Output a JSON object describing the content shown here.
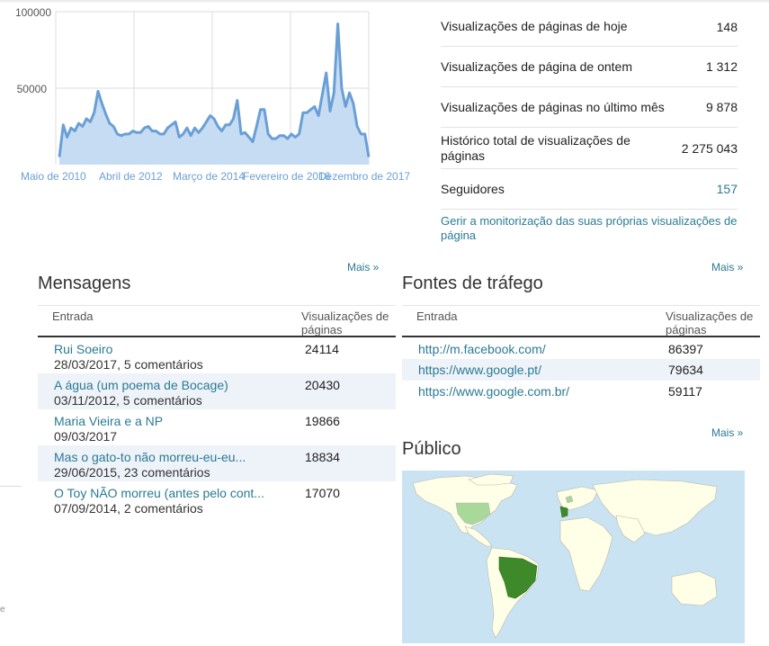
{
  "chart_data": {
    "type": "area",
    "y_ticks": [
      "100000",
      "50000"
    ],
    "x_labels": [
      "Maio de 2010",
      "Abril de 2012",
      "Março de 2014",
      "Fevereiro de 2016",
      "Dezembro de 2017"
    ],
    "ylim": [
      0,
      100000
    ],
    "color": "#6a9fd6",
    "fill": "#c6dcf3",
    "grid": true,
    "values": [
      5000,
      26000,
      18000,
      24000,
      22000,
      27000,
      25000,
      30000,
      28000,
      34000,
      48000,
      40000,
      33000,
      27000,
      25000,
      20000,
      19000,
      20000,
      20000,
      22000,
      21000,
      21000,
      24000,
      25000,
      22000,
      22000,
      20000,
      20000,
      24000,
      26000,
      28000,
      18000,
      20000,
      24000,
      19000,
      24000,
      21000,
      24000,
      28000,
      32000,
      30000,
      25000,
      22000,
      26000,
      26000,
      30000,
      42000,
      20000,
      21000,
      18000,
      15000,
      25000,
      36000,
      36000,
      20000,
      17000,
      17000,
      19000,
      19000,
      17000,
      20000,
      18000,
      20000,
      34000,
      34000,
      36000,
      38000,
      32000,
      46000,
      60000,
      35000,
      47000,
      92000,
      50000,
      38000,
      47000,
      40000,
      25000,
      20000,
      20000,
      5000
    ]
  },
  "stats": {
    "rows": [
      {
        "label": "Visualizações de páginas de hoje",
        "value": "148"
      },
      {
        "label": "Visualizações de página de ontem",
        "value": "1 312"
      },
      {
        "label": "Visualizações de páginas no último mês",
        "value": "9 878"
      },
      {
        "label": "Histórico total de visualizações de páginas",
        "value": "2 275 043"
      },
      {
        "label": "Seguidores",
        "value": "157"
      }
    ],
    "manage_link": "Gerir a monitorização das suas próprias visualizações de página"
  },
  "messages": {
    "more": "Mais »",
    "title": "Mensagens",
    "col_entry": "Entrada",
    "col_views": "Visualizações de páginas",
    "rows": [
      {
        "title": "Rui Soeiro",
        "sub": "28/03/2017, 5 comentários",
        "views": "24114"
      },
      {
        "title": "A água (um poema de Bocage)",
        "sub": "03/11/2012, 5 comentários",
        "views": "20430"
      },
      {
        "title": "Maria Vieira e a NP",
        "sub": "09/03/2017",
        "views": "19866"
      },
      {
        "title": "Mas o gato-to não morreu-eu-eu...",
        "sub": "29/06/2015, 23 comentários",
        "views": "18834"
      },
      {
        "title": "O Toy NÃO morreu (antes pelo cont...",
        "sub": "07/09/2014, 2 comentários",
        "views": "17070"
      }
    ]
  },
  "traffic": {
    "more": "Mais »",
    "title": "Fontes de tráfego",
    "col_entry": "Entrada",
    "col_views": "Visualizações de páginas",
    "rows": [
      {
        "url": "http://m.facebook.com/",
        "views": "86397"
      },
      {
        "url": "https://www.google.pt/",
        "views": "79634"
      },
      {
        "url": "https://www.google.com.br/",
        "views": "59117"
      }
    ]
  },
  "audience": {
    "more": "Mais »",
    "title": "Público"
  },
  "sidebar": {
    "fragment": "e"
  }
}
